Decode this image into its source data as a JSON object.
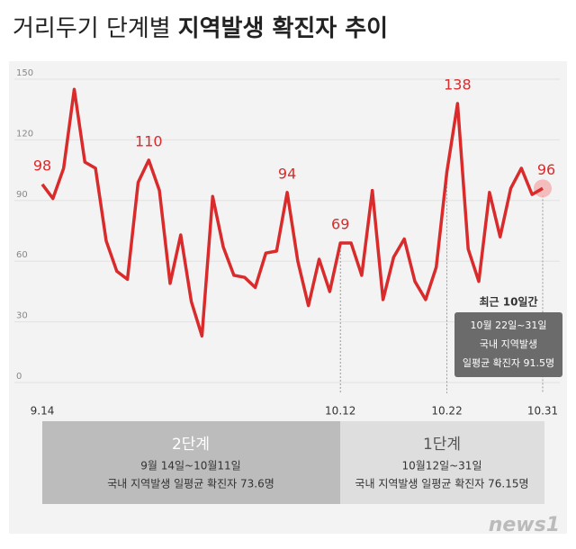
{
  "header": {
    "title_regular": "거리두기 단계별",
    "title_bold": "지역발생 확진자 추이"
  },
  "chart_data": {
    "type": "line",
    "categories": [
      "9.14",
      null,
      null,
      null,
      null,
      null,
      null,
      null,
      null,
      null,
      null,
      null,
      null,
      null,
      null,
      null,
      null,
      null,
      null,
      null,
      null,
      null,
      null,
      null,
      null,
      null,
      null,
      null,
      "10.12",
      null,
      null,
      null,
      null,
      null,
      null,
      null,
      null,
      null,
      "10.22",
      null,
      null,
      null,
      null,
      null,
      null,
      null,
      null,
      "10.31"
    ],
    "series": [
      {
        "name": "지역발생 확진자",
        "color": "#d92b2b",
        "values": [
          98,
          91,
          106,
          145,
          109,
          106,
          70,
          55,
          51,
          99,
          110,
          95,
          49,
          73,
          40,
          23,
          92,
          67,
          53,
          52,
          47,
          64,
          65,
          94,
          60,
          38,
          61,
          45,
          69,
          69,
          53,
          95,
          41,
          62,
          71,
          50,
          41,
          57,
          104,
          138,
          66,
          50,
          94,
          72,
          96,
          106,
          93,
          96
        ],
        "value_labels": [
          "98",
          null,
          null,
          null,
          null,
          null,
          null,
          null,
          null,
          null,
          "110",
          null,
          null,
          null,
          null,
          null,
          null,
          null,
          null,
          null,
          null,
          null,
          null,
          "94",
          null,
          null,
          null,
          null,
          "69",
          null,
          null,
          null,
          null,
          null,
          null,
          null,
          null,
          null,
          null,
          "138",
          null,
          null,
          null,
          null,
          null,
          null,
          null,
          "96"
        ]
      }
    ],
    "ylim": [
      0,
      150
    ],
    "yticks": [
      0,
      30,
      60,
      90,
      120,
      150
    ],
    "grid": true
  },
  "callout": {
    "heading": "최근 10일간",
    "lines": [
      "10월 22일~31일",
      "국내 지역발생",
      "일평균 확진자 91.5명"
    ]
  },
  "phases": [
    {
      "name": "2단계",
      "period": "9월 14일~10월11일",
      "note": "국내 지역발생 일평균 확진자 73.6명"
    },
    {
      "name": "1단계",
      "period": "10월12일~31일",
      "note": "국내 지역발생 일평균 확진자 76.15명"
    }
  ],
  "logo": "news1"
}
